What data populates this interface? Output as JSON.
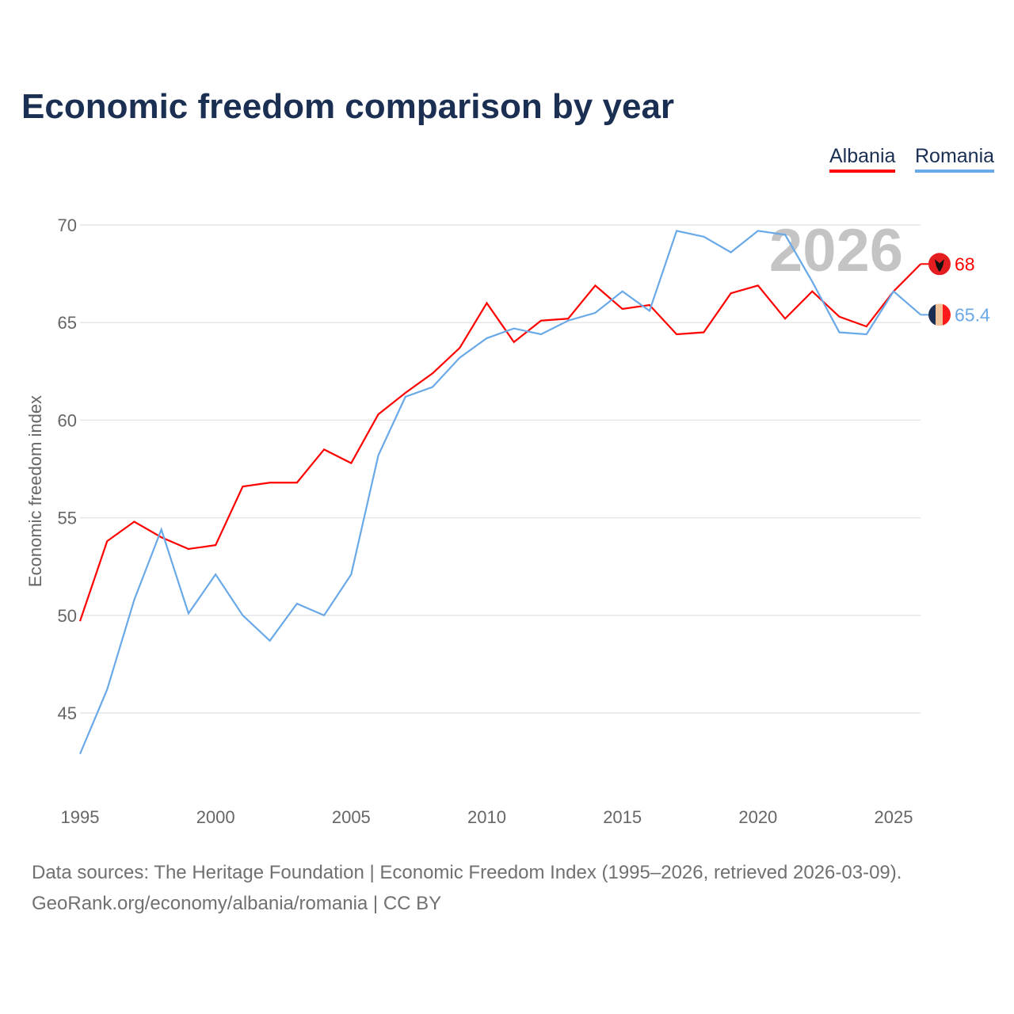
{
  "title": "Economic freedom comparison by year",
  "watermark_year": "2026",
  "source_line1": "Data sources: The Heritage Foundation | Economic Freedom Index (1995–2026, retrieved 2026-03-09).",
  "source_line2": "GeoRank.org/economy/albania/romania | CC BY",
  "chart_data": {
    "type": "line",
    "title": "Economic freedom comparison by year",
    "xlabel": "",
    "ylabel": "Economic freedom index",
    "xlim": [
      1995,
      2026
    ],
    "ylim": [
      41,
      71
    ],
    "xticks": [
      1995,
      2000,
      2005,
      2010,
      2015,
      2020,
      2025
    ],
    "yticks": [
      45,
      50,
      55,
      60,
      65,
      70
    ],
    "grid": true,
    "legend_position": "top-right",
    "x": [
      1995,
      1996,
      1997,
      1998,
      1999,
      2000,
      2001,
      2002,
      2003,
      2004,
      2005,
      2006,
      2007,
      2008,
      2009,
      2010,
      2011,
      2012,
      2013,
      2014,
      2015,
      2016,
      2017,
      2018,
      2019,
      2020,
      2021,
      2022,
      2023,
      2024,
      2025,
      2026
    ],
    "series": [
      {
        "name": "Albania",
        "color": "#ff0000",
        "end_label": "68",
        "values": [
          49.7,
          53.8,
          54.8,
          54.0,
          53.4,
          53.6,
          56.6,
          56.8,
          56.8,
          58.5,
          57.8,
          60.3,
          61.4,
          62.4,
          63.7,
          66.0,
          64.0,
          65.1,
          65.2,
          66.9,
          65.7,
          65.9,
          64.4,
          64.5,
          66.5,
          66.9,
          65.2,
          66.6,
          65.3,
          64.8,
          66.6,
          68.0
        ]
      },
      {
        "name": "Romania",
        "color": "#6aa9e8",
        "end_label": "65.4",
        "values": [
          42.9,
          46.2,
          50.8,
          54.4,
          50.1,
          52.1,
          50.0,
          48.7,
          50.6,
          50.0,
          52.1,
          58.2,
          61.2,
          61.7,
          63.2,
          64.2,
          64.7,
          64.4,
          65.1,
          65.5,
          66.6,
          65.6,
          69.7,
          69.4,
          68.6,
          69.7,
          69.5,
          67.1,
          64.5,
          64.4,
          66.6,
          65.4
        ]
      }
    ]
  }
}
